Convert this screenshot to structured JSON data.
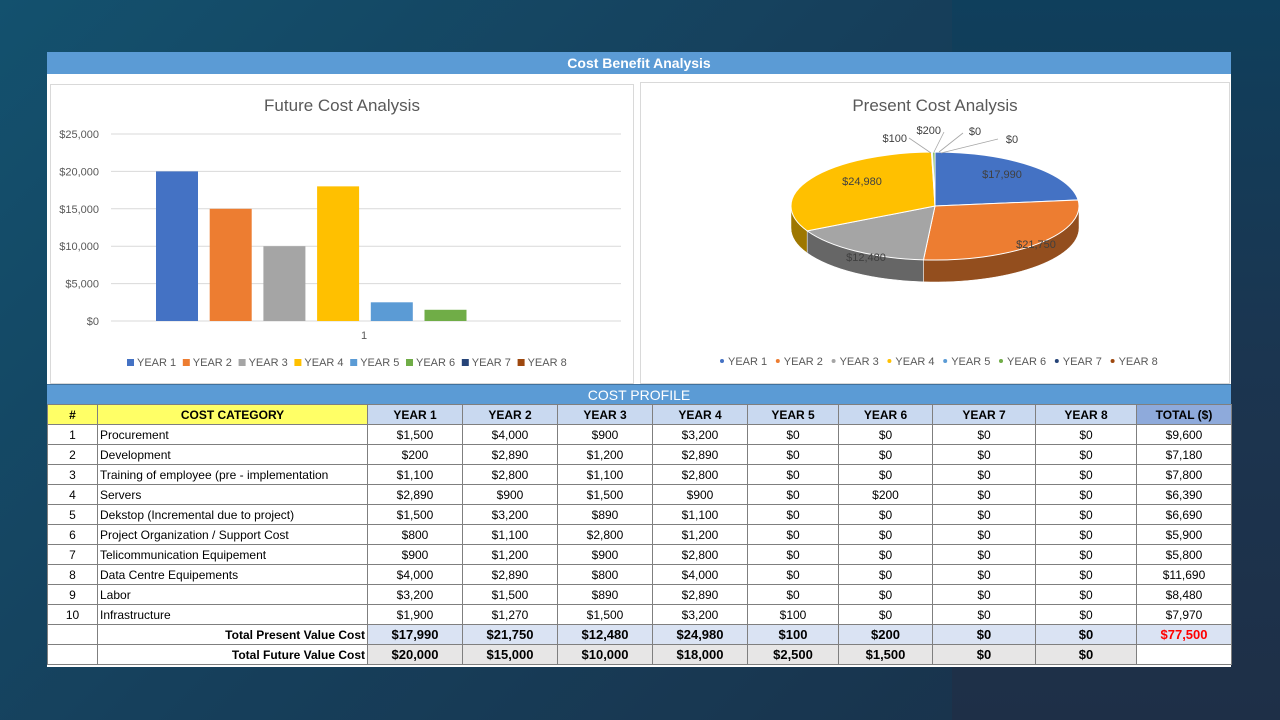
{
  "banner_title": "Cost Benefit Analysis",
  "profile_title": "COST PROFILE",
  "colors": [
    "#4472c4",
    "#ed7d31",
    "#a5a5a5",
    "#ffc000",
    "#5b9bd5",
    "#70ad47",
    "#264478",
    "#9e480e"
  ],
  "chart_data": [
    {
      "type": "bar",
      "title": "Future Cost Analysis",
      "categories": [
        "1"
      ],
      "series": [
        {
          "name": "YEAR 1",
          "values": [
            20000
          ]
        },
        {
          "name": "YEAR 2",
          "values": [
            15000
          ]
        },
        {
          "name": "YEAR 3",
          "values": [
            10000
          ]
        },
        {
          "name": "YEAR 4",
          "values": [
            18000
          ]
        },
        {
          "name": "YEAR 5",
          "values": [
            2500
          ]
        },
        {
          "name": "YEAR 6",
          "values": [
            1500
          ]
        },
        {
          "name": "YEAR 7",
          "values": [
            0
          ]
        },
        {
          "name": "YEAR 8",
          "values": [
            0
          ]
        }
      ],
      "yticks": [
        "$0",
        "$5,000",
        "$10,000",
        "$15,000",
        "$20,000",
        "$25,000"
      ],
      "ylim": [
        0,
        25000
      ],
      "grid": true,
      "legend": "bottom"
    },
    {
      "type": "pie",
      "title": "Present Cost Analysis",
      "labels": [
        "YEAR 1",
        "YEAR 2",
        "YEAR 3",
        "YEAR 4",
        "YEAR 5",
        "YEAR 6",
        "YEAR 7",
        "YEAR 8"
      ],
      "values": [
        17990,
        21750,
        12480,
        24980,
        100,
        200,
        0,
        0
      ],
      "data_labels": [
        "$17,990",
        "$21,750",
        "$12,480",
        "$24,980",
        "$100",
        "$200",
        "$0",
        "$0"
      ],
      "legend": "bottom"
    }
  ],
  "table": {
    "headers": [
      "#",
      "COST CATEGORY",
      "YEAR 1",
      "YEAR 2",
      "YEAR 3",
      "YEAR 4",
      "YEAR 5",
      "YEAR 6",
      "YEAR 7",
      "YEAR 8",
      "TOTAL ($)"
    ],
    "rows": [
      [
        "1",
        "Procurement",
        "$1,500",
        "$4,000",
        "$900",
        "$3,200",
        "$0",
        "$0",
        "$0",
        "$0",
        "$9,600"
      ],
      [
        "2",
        "Development",
        "$200",
        "$2,890",
        "$1,200",
        "$2,890",
        "$0",
        "$0",
        "$0",
        "$0",
        "$7,180"
      ],
      [
        "3",
        "Training of employee (pre - implementation",
        "$1,100",
        "$2,800",
        "$1,100",
        "$2,800",
        "$0",
        "$0",
        "$0",
        "$0",
        "$7,800"
      ],
      [
        "4",
        "Servers",
        "$2,890",
        "$900",
        "$1,500",
        "$900",
        "$0",
        "$200",
        "$0",
        "$0",
        "$6,390"
      ],
      [
        "5",
        "Dekstop (Incremental due to project)",
        "$1,500",
        "$3,200",
        "$890",
        "$1,100",
        "$0",
        "$0",
        "$0",
        "$0",
        "$6,690"
      ],
      [
        "6",
        "Project Organization / Support Cost",
        "$800",
        "$1,100",
        "$2,800",
        "$1,200",
        "$0",
        "$0",
        "$0",
        "$0",
        "$5,900"
      ],
      [
        "7",
        "Telicommunication Equipement",
        "$900",
        "$1,200",
        "$900",
        "$2,800",
        "$0",
        "$0",
        "$0",
        "$0",
        "$5,800"
      ],
      [
        "8",
        "Data Centre Equipements",
        "$4,000",
        "$2,890",
        "$800",
        "$4,000",
        "$0",
        "$0",
        "$0",
        "$0",
        "$11,690"
      ],
      [
        "9",
        "Labor",
        "$3,200",
        "$1,500",
        "$890",
        "$2,890",
        "$0",
        "$0",
        "$0",
        "$0",
        "$8,480"
      ],
      [
        "10",
        "Infrastructure",
        "$1,900",
        "$1,270",
        "$1,500",
        "$3,200",
        "$100",
        "$0",
        "$0",
        "$0",
        "$7,970"
      ]
    ],
    "present_total": {
      "label": "Total Present Value Cost",
      "values": [
        "$17,990",
        "$21,750",
        "$12,480",
        "$24,980",
        "$100",
        "$200",
        "$0",
        "$0",
        "$77,500"
      ]
    },
    "future_total": {
      "label": "Total Future Value Cost",
      "values": [
        "$20,000",
        "$15,000",
        "$10,000",
        "$18,000",
        "$2,500",
        "$1,500",
        "$0",
        "$0"
      ]
    }
  }
}
